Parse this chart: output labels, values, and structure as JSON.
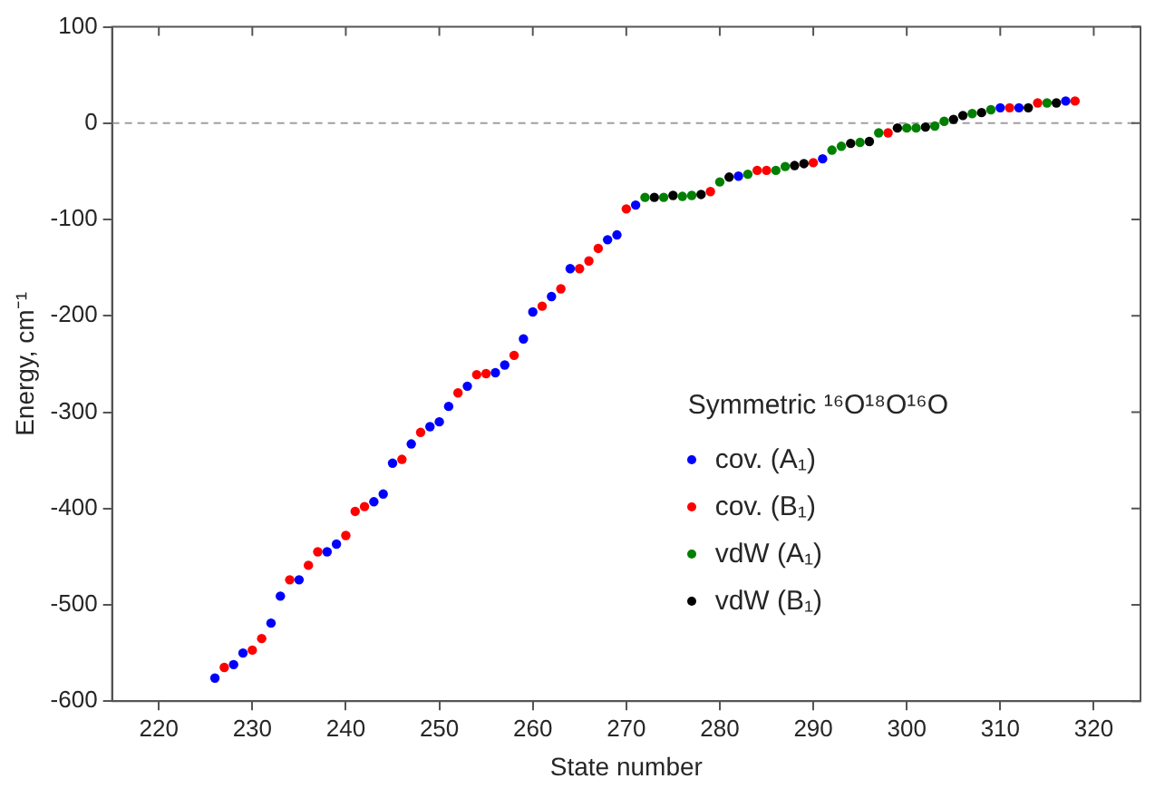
{
  "chart_data": {
    "type": "scatter",
    "xlabel": "State number",
    "ylabel": "Energy, cm⁻¹",
    "legend_title": "Symmetric ¹⁶O¹⁸O¹⁶O",
    "xlim": [
      215,
      325
    ],
    "xticks": [
      220,
      230,
      240,
      250,
      260,
      270,
      280,
      290,
      300,
      310,
      320
    ],
    "ylim": [
      -600,
      100
    ],
    "yticks": [
      -600,
      -500,
      -400,
      -300,
      -200,
      -100,
      0,
      100
    ],
    "grid": false,
    "legend": "bottom right",
    "marker": "circle",
    "ref_lines": [
      {
        "axis": "y",
        "value": 0,
        "color": "#a0a0a0",
        "line_style": "dashed"
      }
    ],
    "series": [
      {
        "name": "cov. (A₁)",
        "color": "#0000ff",
        "x": [
          226,
          228,
          229,
          232,
          233,
          235,
          238,
          239,
          243,
          244,
          245,
          247,
          249,
          250,
          251,
          253,
          256,
          257,
          259,
          260,
          262,
          264,
          268,
          269,
          271,
          282,
          291,
          310,
          312,
          317
        ],
        "values": [
          -576,
          -562,
          -550,
          -519,
          -491,
          -474,
          -445,
          -437,
          -393,
          -385,
          -353,
          -333,
          -315,
          -310,
          -294,
          -273,
          -259,
          -251,
          -224,
          -196,
          -180,
          -151,
          -121,
          -116,
          -85,
          -55,
          -37,
          16,
          16,
          23
        ]
      },
      {
        "name": "cov. (B₁)",
        "color": "#ff0000",
        "x": [
          227,
          230,
          231,
          234,
          236,
          237,
          240,
          241,
          242,
          246,
          248,
          252,
          254,
          255,
          258,
          261,
          263,
          265,
          266,
          267,
          270,
          279,
          284,
          285,
          290,
          298,
          311,
          314,
          318
        ],
        "values": [
          -565,
          -547,
          -535,
          -474,
          -459,
          -445,
          -428,
          -403,
          -398,
          -349,
          -321,
          -280,
          -261,
          -260,
          -241,
          -190,
          -172,
          -151,
          -143,
          -130,
          -89,
          -71,
          -49,
          -49,
          -41,
          -10,
          16,
          21,
          23
        ]
      },
      {
        "name": "vdW (A₁)",
        "color": "#008000",
        "x": [
          272,
          274,
          276,
          277,
          280,
          283,
          286,
          287,
          292,
          293,
          295,
          297,
          300,
          301,
          303,
          304,
          307,
          309,
          315
        ],
        "values": [
          -77,
          -77,
          -76,
          -75,
          -61,
          -53,
          -49,
          -45,
          -28,
          -24,
          -20,
          -10,
          -5,
          -5,
          -3,
          2,
          10,
          14,
          21
        ]
      },
      {
        "name": "vdW (B₁)",
        "color": "#000000",
        "x": [
          273,
          275,
          278,
          281,
          288,
          289,
          294,
          296,
          299,
          302,
          305,
          306,
          308,
          313,
          316
        ],
        "values": [
          -77,
          -75,
          -74,
          -56,
          -44,
          -42,
          -21,
          -19,
          -5,
          -4,
          4,
          8,
          11,
          16,
          21
        ]
      }
    ]
  }
}
